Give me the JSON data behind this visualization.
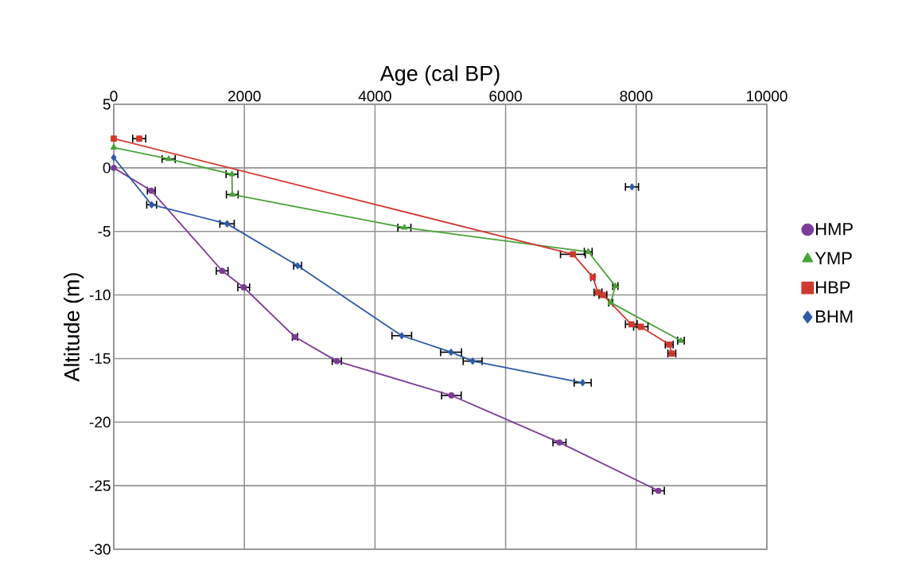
{
  "chart_data": {
    "type": "line",
    "xlabel": "Age (cal BP)",
    "ylabel": "Altitude (m)",
    "xlim": [
      0,
      10000
    ],
    "xticks": [
      0,
      2000,
      4000,
      6000,
      8000,
      10000
    ],
    "ylim": [
      -30,
      5
    ],
    "yticks": [
      -30,
      -25,
      -20,
      -15,
      -10,
      -5,
      0,
      5
    ],
    "grid": true,
    "legend": "right",
    "series": [
      {
        "name": "HMP",
        "color": "#7d3c98",
        "marker": "circle",
        "x": [
          0,
          575,
          1660,
          1990,
          2775,
          3415,
          5170,
          6825,
          8340
        ],
        "values": [
          0,
          -1.8,
          -8.1,
          -9.4,
          -13.3,
          -15.2,
          -17.9,
          -21.6,
          -25.4
        ],
        "xerrors": [
          null,
          60,
          90,
          90,
          40,
          70,
          150,
          100,
          90
        ]
      },
      {
        "name": "YMP",
        "color": "#4aa33a",
        "marker": "triangle",
        "x": [
          0,
          840,
          1810,
          1815,
          4450,
          7265,
          7680,
          7610,
          8685
        ],
        "values": [
          1.6,
          0.7,
          -0.5,
          -2.1,
          -4.7,
          -6.6,
          -9.3,
          -10.6,
          -13.6
        ],
        "xerrors": [
          null,
          100,
          90,
          90,
          100,
          60,
          40,
          30,
          50
        ]
      },
      {
        "name": "HBP",
        "color": "#d0392f",
        "marker": "square",
        "x": [
          0,
          7030,
          7335,
          7415,
          7490,
          7925,
          8070,
          8505,
          8545
        ],
        "values": [
          2.3,
          -6.8,
          -8.6,
          -9.8,
          -10,
          -12.3,
          -12.5,
          -13.9,
          -14.6
        ],
        "xerrors": [
          null,
          190,
          30,
          60,
          60,
          90,
          110,
          60,
          60
        ]
      },
      {
        "type": "scatter",
        "color": "#d0392f",
        "marker": "square",
        "x": [
          390
        ],
        "values": [
          2.3
        ],
        "xerrors": [
          100
        ]
      },
      {
        "name": "BHM",
        "color": "#2e5aa8",
        "marker": "diamond",
        "x": [
          0,
          580,
          1735,
          2815,
          4410,
          5165,
          5495,
          7180
        ],
        "values": [
          0.8,
          -2.9,
          -4.4,
          -7.7,
          -13.2,
          -14.5,
          -15.2,
          -16.9
        ],
        "xerrors": [
          null,
          75,
          110,
          60,
          150,
          160,
          145,
          130
        ]
      },
      {
        "type": "scatter",
        "color": "#2e5aa8",
        "marker": "diamond",
        "x": [
          7935
        ],
        "values": [
          -1.5
        ],
        "xerrors": [
          100
        ]
      }
    ]
  }
}
